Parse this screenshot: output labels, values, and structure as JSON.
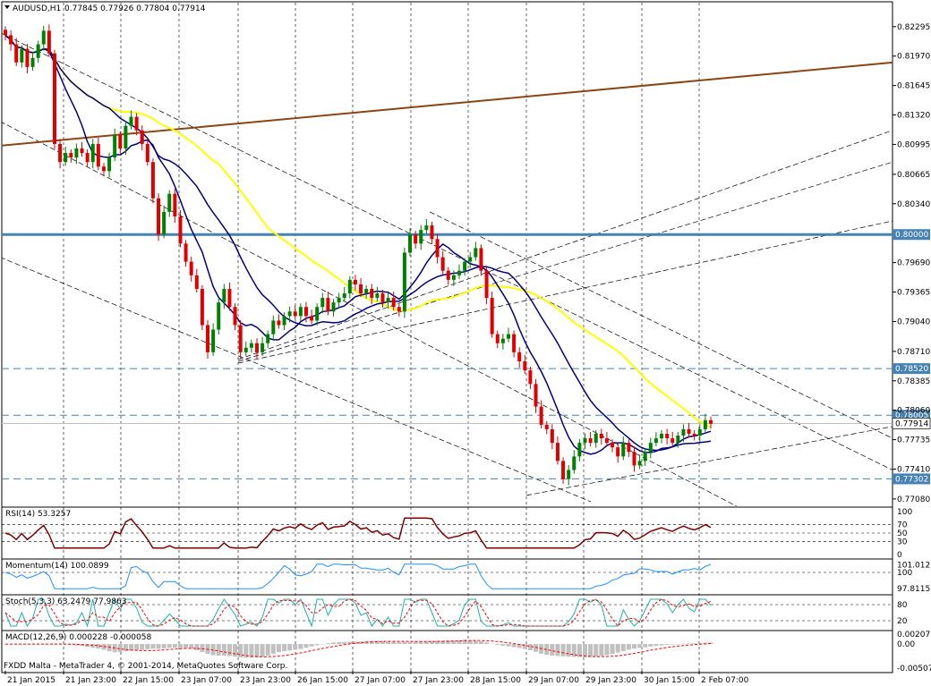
{
  "header": {
    "symbol": "AUDUSD,H1",
    "ohlc": "0.77845 0.77926 0.77804 0.77914"
  },
  "footer": {
    "copyright": "FXDD Malta - MetaTrader 4, © 2001-2014, MetaQuotes Software Corp."
  },
  "colors": {
    "bull": "#008000",
    "bear": "#e00000",
    "ma_fast": "#000080",
    "ma_mid": "#000080",
    "ma_slow": "#ffff00",
    "trend_brown": "#8b4513",
    "level_line": "#4682b4",
    "rsi": "#800000",
    "momentum": "#1e90ff",
    "stoch_main": "#20b2aa",
    "stoch_signal": "#ff0000",
    "macd_hist": "#c0c0c0",
    "macd_signal": "#ff0000"
  },
  "chart_data": {
    "type": "candlestick",
    "price_axis": {
      "ticks": [
        "0.82295",
        "0.81970",
        "0.81645",
        "0.81320",
        "0.80995",
        "0.80665",
        "0.80340",
        "0.79690",
        "0.79365",
        "0.79040",
        "0.78710",
        "0.78385",
        "0.78060",
        "0.77735",
        "0.77410",
        "0.77080"
      ],
      "range": [
        0.77,
        0.8255
      ]
    },
    "time_axis": {
      "labels": [
        "21 Jan 2015",
        "21 Jan 23:00",
        "22 Jan 15:00",
        "23 Jan 07:00",
        "23 Jan 23:00",
        "26 Jan 15:00",
        "27 Jan 07:00",
        "27 Jan 23:00",
        "28 Jan 15:00",
        "29 Jan 07:00",
        "29 Jan 23:00",
        "30 Jan 15:00",
        "2 Feb 07:00"
      ]
    },
    "levels": [
      {
        "value": 0.8,
        "label": "0.80000",
        "style": "solid"
      },
      {
        "value": 0.7852,
        "label": "0.78520",
        "style": "dashed"
      },
      {
        "value": 0.78005,
        "label": "0.78005",
        "style": "dashed"
      },
      {
        "value": 0.77302,
        "label": "0.77302",
        "style": "dashed"
      }
    ],
    "current_price": {
      "value": 0.77914,
      "label": "0.77914"
    },
    "closes": [
      0.822,
      0.821,
      0.819,
      0.8205,
      0.8185,
      0.8195,
      0.821,
      0.8225,
      0.82,
      0.81,
      0.808,
      0.809,
      0.8085,
      0.8095,
      0.809,
      0.808,
      0.81,
      0.8075,
      0.807,
      0.8085,
      0.811,
      0.8095,
      0.812,
      0.813,
      0.8115,
      0.81,
      0.808,
      0.804,
      0.8,
      0.8025,
      0.8045,
      0.802,
      0.799,
      0.797,
      0.7955,
      0.794,
      0.79,
      0.787,
      0.7895,
      0.7925,
      0.794,
      0.792,
      0.79,
      0.787,
      0.7875,
      0.788,
      0.787,
      0.788,
      0.789,
      0.7905,
      0.79,
      0.791,
      0.7915,
      0.791,
      0.792,
      0.791,
      0.7905,
      0.792,
      0.793,
      0.7915,
      0.7925,
      0.793,
      0.7935,
      0.795,
      0.7945,
      0.7935,
      0.794,
      0.793,
      0.7935,
      0.7925,
      0.793,
      0.792,
      0.7915,
      0.798,
      0.8,
      0.799,
      0.8005,
      0.801,
      0.7995,
      0.7975,
      0.796,
      0.795,
      0.7955,
      0.796,
      0.797,
      0.7975,
      0.7985,
      0.796,
      0.793,
      0.789,
      0.788,
      0.7885,
      0.789,
      0.787,
      0.786,
      0.785,
      0.7835,
      0.781,
      0.779,
      0.7785,
      0.777,
      0.775,
      0.773,
      0.774,
      0.7755,
      0.777,
      0.7775,
      0.777,
      0.778,
      0.7775,
      0.777,
      0.7765,
      0.7755,
      0.777,
      0.776,
      0.7745,
      0.775,
      0.776,
      0.777,
      0.7775,
      0.778,
      0.7775,
      0.777,
      0.7778,
      0.7785,
      0.778,
      0.7778,
      0.7785,
      0.7795,
      0.7791
    ],
    "indicators": [
      {
        "name": "RSI(14)",
        "value": "53.3257",
        "levels": [
          "100",
          "70",
          "50",
          "30",
          "0"
        ]
      },
      {
        "name": "Momentum(14)",
        "value": "100.0899",
        "ticks": [
          "101.0122",
          "100",
          "97.8115"
        ]
      },
      {
        "name": "Stoch(5,3,3)",
        "value": "63.2479 77.9863",
        "ticks": [
          "80",
          "20"
        ]
      },
      {
        "name": "MACD(12,26,9)",
        "value": "0.000228 -0.000058",
        "ticks": [
          "0.002073",
          "0.00",
          "-0.005075"
        ]
      }
    ]
  }
}
